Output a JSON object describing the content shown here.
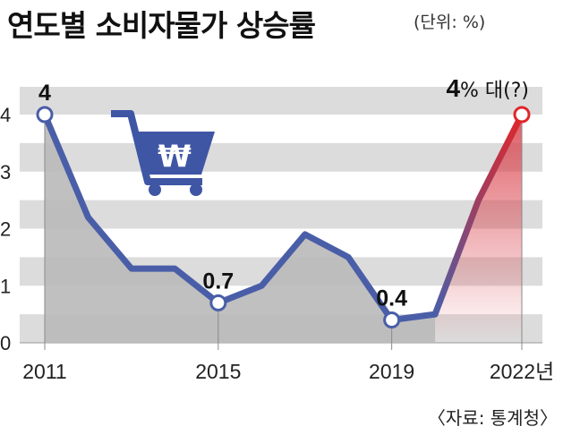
{
  "title": "연도별 소비자물가 상승률",
  "unit_note": "(단위: %)",
  "source": "〈자료: 통계청〉",
  "chart_data": {
    "type": "line",
    "x": [
      2011,
      2012,
      2013,
      2014,
      2015,
      2016,
      2017,
      2018,
      2019,
      2020,
      2021,
      2022
    ],
    "series": [
      {
        "values": [
          4.0,
          2.2,
          1.3,
          1.3,
          0.7,
          1.0,
          1.9,
          1.5,
          0.4,
          0.5,
          2.5,
          4.0
        ]
      }
    ],
    "xticks": [
      "2011",
      "2015",
      "2019",
      "2022년"
    ],
    "yticks": [
      "0",
      "1",
      "2",
      "3",
      "4"
    ],
    "ylim": [
      0,
      4.4
    ],
    "grid": "horizontal bands",
    "data_labels": [
      {
        "index": 0,
        "text": "4"
      },
      {
        "index": 4,
        "text": "0.7"
      },
      {
        "index": 8,
        "text": "0.4"
      }
    ],
    "forecast_label": {
      "index": 11,
      "value": "4",
      "text": "% 대(?)"
    },
    "colors": {
      "line": "#4a5ea8",
      "forecast_line": "#e0262a",
      "area": "#b9b9b9",
      "band": "#dcdcdc",
      "icon": "#3f56a5"
    }
  },
  "icon": "shopping-cart-won-icon"
}
